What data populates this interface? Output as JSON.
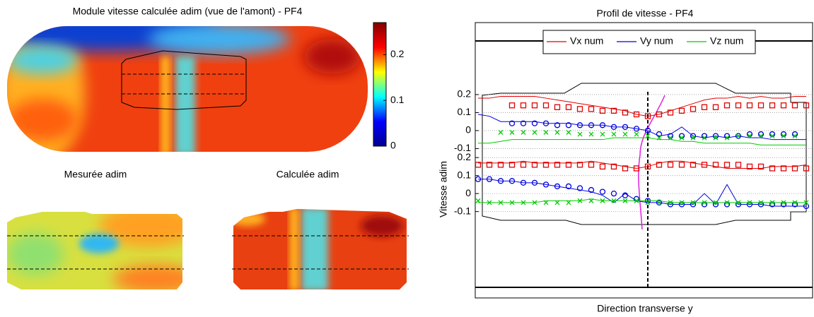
{
  "chart_data": [
    {
      "type": "heatmap",
      "title": "Module vitesse calculée adim (vue de l'amont) - PF4",
      "colormap": "jet",
      "clim": [
        0,
        0.27
      ],
      "colorbar_ticks": [
        0,
        0.1,
        0.2
      ]
    },
    {
      "type": "heatmap",
      "title": "Mesurée adim",
      "colormap": "jet"
    },
    {
      "type": "heatmap",
      "title": "Calculée adim",
      "colormap": "jet"
    },
    {
      "type": "line",
      "title": "Profil de vitesse - PF4",
      "xlabel": "Direction transverse y",
      "ylabel": "Vitesse adim",
      "grid": true,
      "legend": [
        {
          "name": "Vx num",
          "color": "#e00000"
        },
        {
          "name": "Vy num",
          "color": "#0000e0"
        },
        {
          "name": "Vz num",
          "color": "#00cc00"
        }
      ],
      "categories": [
        null,
        null,
        null,
        null,
        null,
        null,
        null,
        null,
        null,
        null,
        null,
        null,
        null,
        null,
        null,
        null,
        null,
        null,
        null,
        null,
        null,
        null,
        null,
        null,
        null,
        null,
        null,
        null,
        null,
        null
      ],
      "panels": [
        {
          "ylim": [
            -0.93,
            0.6
          ],
          "yticks": [
            0.2,
            0.1,
            0,
            -0.1
          ],
          "series": [
            {
              "color": "#e00000",
              "style": "line",
              "values": [
                0.18,
                0.18,
                0.19,
                0.19,
                0.19,
                0.19,
                0.18,
                0.17,
                0.16,
                0.15,
                0.14,
                0.13,
                0.12,
                0.11,
                0.09,
                0.08,
                0.09,
                0.11,
                0.13,
                0.15,
                0.17,
                0.18,
                0.18,
                0.19,
                0.18,
                0.19,
                0.18,
                0.18,
                0.19,
                0.19
              ]
            },
            {
              "color": "#e00000",
              "style": "square",
              "values": [
                null,
                null,
                null,
                0.14,
                0.14,
                0.14,
                0.14,
                0.13,
                0.13,
                0.12,
                0.12,
                0.11,
                0.11,
                0.1,
                0.09,
                0.08,
                0.09,
                0.1,
                0.11,
                0.12,
                0.13,
                0.13,
                0.14,
                0.14,
                0.14,
                0.14,
                0.14,
                0.14,
                0.14,
                0.14
              ]
            },
            {
              "color": "#0000e0",
              "style": "line",
              "values": [
                0.09,
                0.08,
                0.05,
                0.05,
                0.05,
                0.05,
                0.04,
                0.04,
                0.04,
                0.03,
                0.03,
                0.03,
                0.02,
                0.02,
                0.01,
                0,
                -0.03,
                -0.02,
                0.02,
                -0.03,
                -0.04,
                -0.03,
                -0.04,
                -0.03,
                -0.04,
                -0.04,
                -0.05,
                -0.05,
                -0.05,
                -0.05
              ]
            },
            {
              "color": "#0000e0",
              "style": "circle",
              "values": [
                null,
                null,
                null,
                0.04,
                0.04,
                0.04,
                0.04,
                0.03,
                0.03,
                0.03,
                0.03,
                0.03,
                0.02,
                0.02,
                0.01,
                0,
                -0.02,
                -0.03,
                -0.03,
                -0.03,
                -0.03,
                -0.03,
                -0.03,
                -0.03,
                -0.02,
                -0.02,
                -0.02,
                -0.02,
                -0.02,
                null
              ]
            },
            {
              "color": "#00cc00",
              "style": "line",
              "values": [
                -0.07,
                -0.07,
                -0.06,
                -0.05,
                -0.05,
                -0.05,
                -0.05,
                -0.05,
                -0.05,
                -0.05,
                -0.05,
                -0.05,
                -0.04,
                -0.04,
                -0.04,
                -0.04,
                -0.05,
                -0.05,
                -0.06,
                -0.06,
                -0.07,
                -0.07,
                -0.07,
                -0.07,
                -0.07,
                -0.08,
                -0.08,
                -0.08,
                -0.08,
                -0.08
              ]
            },
            {
              "color": "#00cc00",
              "style": "x",
              "values": [
                null,
                null,
                -0.01,
                -0.01,
                -0.01,
                -0.01,
                -0.01,
                -0.01,
                -0.01,
                -0.02,
                -0.02,
                -0.02,
                -0.02,
                -0.02,
                -0.02,
                -0.03,
                -0.04,
                -0.04,
                -0.04,
                -0.04,
                -0.04,
                -0.04,
                -0.04,
                -0.03,
                -0.03,
                -0.03,
                -0.03,
                -0.03,
                -0.03,
                null
              ]
            }
          ]
        },
        {
          "ylim": [
            -0.58,
            0.95
          ],
          "yticks": [
            0.2,
            0.1,
            0,
            -0.1
          ],
          "series": [
            {
              "color": "#e00000",
              "style": "line",
              "values": [
                0.17,
                0.17,
                0.17,
                0.17,
                0.18,
                0.17,
                0.17,
                0.17,
                0.17,
                0.17,
                0.18,
                0.17,
                0.16,
                0.15,
                0.14,
                0.15,
                0.17,
                0.18,
                0.18,
                0.17,
                0.16,
                0.15,
                0.14,
                0.14,
                0.14,
                0.14,
                0.15,
                0.15,
                0.15,
                0.16
              ]
            },
            {
              "color": "#e00000",
              "style": "square",
              "values": [
                0.16,
                0.16,
                0.16,
                0.16,
                0.16,
                0.16,
                0.16,
                0.16,
                0.16,
                0.16,
                0.16,
                0.15,
                0.15,
                0.14,
                0.14,
                0.15,
                0.16,
                0.16,
                0.16,
                0.16,
                0.16,
                0.16,
                0.16,
                0.16,
                0.15,
                0.15,
                0.14,
                0.14,
                0.14,
                0.14
              ]
            },
            {
              "color": "#0000e0",
              "style": "line",
              "values": [
                0.08,
                0.08,
                0.07,
                0.07,
                0.06,
                0.06,
                0.05,
                0.04,
                0.03,
                0.02,
                0.01,
                -0.01,
                -0.05,
                0,
                -0.04,
                -0.05,
                -0.05,
                -0.06,
                -0.06,
                -0.06,
                0,
                -0.06,
                0.05,
                -0.06,
                -0.06,
                -0.06,
                -0.07,
                -0.07,
                -0.07,
                -0.07
              ]
            },
            {
              "color": "#0000e0",
              "style": "circle",
              "values": [
                0.08,
                0.08,
                0.07,
                0.07,
                0.06,
                0.06,
                0.05,
                0.04,
                0.04,
                0.03,
                0.02,
                0.01,
                0,
                -0.01,
                -0.03,
                -0.04,
                -0.05,
                -0.06,
                -0.06,
                -0.06,
                -0.06,
                -0.06,
                -0.06,
                -0.06,
                -0.06,
                -0.06,
                -0.06,
                -0.06,
                -0.06,
                -0.07
              ]
            },
            {
              "color": "#00cc00",
              "style": "line",
              "values": [
                -0.05,
                -0.05,
                -0.05,
                -0.05,
                -0.05,
                -0.05,
                -0.04,
                -0.04,
                -0.04,
                -0.04,
                -0.03,
                -0.04,
                -0.04,
                -0.04,
                -0.04,
                -0.04,
                -0.04,
                -0.05,
                -0.05,
                -0.05,
                -0.05,
                -0.05,
                -0.05,
                -0.05,
                -0.05,
                -0.05,
                -0.05,
                -0.05,
                -0.05,
                -0.05
              ]
            },
            {
              "color": "#00cc00",
              "style": "x",
              "values": [
                -0.04,
                -0.05,
                -0.05,
                -0.05,
                -0.05,
                -0.05,
                -0.05,
                -0.05,
                -0.05,
                -0.04,
                -0.04,
                -0.04,
                -0.04,
                -0.04,
                -0.04,
                -0.05,
                -0.05,
                -0.05,
                -0.05,
                -0.05,
                -0.05,
                -0.05,
                -0.05,
                -0.05,
                -0.05,
                -0.05,
                -0.05,
                -0.05,
                -0.05,
                -0.05
              ]
            }
          ]
        }
      ]
    }
  ]
}
